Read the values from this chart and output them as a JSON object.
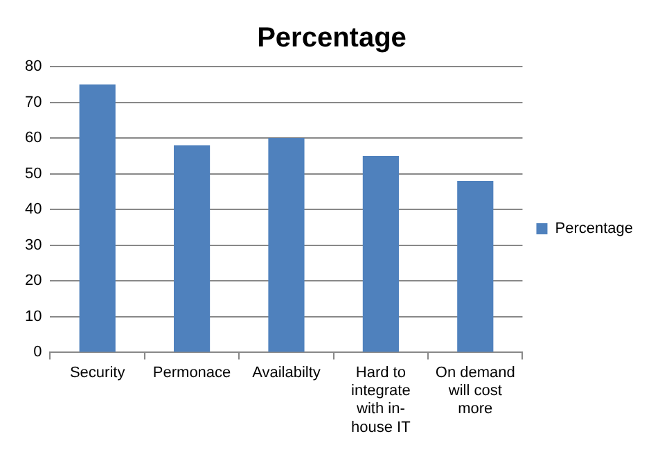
{
  "chart_data": {
    "type": "bar",
    "title": "Percentage",
    "categories": [
      "Security",
      "Permonace",
      "Availabilty",
      "Hard to integrate with in-house IT",
      "On demand will cost more"
    ],
    "series": [
      {
        "name": "Percentage",
        "color": "#4f81bd",
        "values": [
          75,
          58,
          60,
          55,
          48
        ]
      }
    ],
    "ylim": [
      0,
      80
    ],
    "yticks": [
      0,
      10,
      20,
      30,
      40,
      50,
      60,
      70,
      80
    ],
    "grid": "y",
    "legend": "right"
  }
}
